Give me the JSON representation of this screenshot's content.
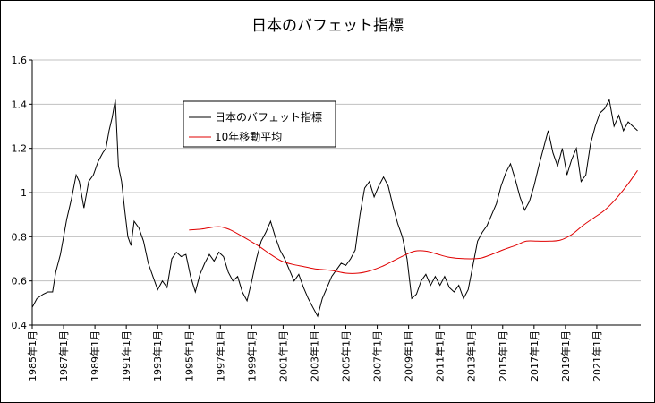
{
  "chart_data": {
    "type": "line",
    "title": "日本のバフェット指標",
    "xlabel": "",
    "ylabel": "",
    "ylim": [
      0.4,
      1.6
    ],
    "yticks": [
      "0.4",
      "0.6",
      "0.8",
      "1",
      "1.2",
      "1.4",
      "1.6"
    ],
    "xlim": [
      1985.0,
      2023.8
    ],
    "xticks": [
      "1985年1月",
      "1987年1月",
      "1989年1月",
      "1991年1月",
      "1993年1月",
      "1995年1月",
      "1997年1月",
      "1999年1月",
      "2001年1月",
      "2003年1月",
      "2005年1月",
      "2007年1月",
      "2009年1月",
      "2011年1月",
      "2013年1月",
      "2015年1月",
      "2017年1月",
      "2019年1月",
      "2021年1月"
    ],
    "grid": true,
    "legend": "inside-top-left",
    "series": [
      {
        "name": "日本のバフェット指標",
        "color": "#000000",
        "x": [
          1985.0,
          1985.3,
          1985.7,
          1986.0,
          1986.3,
          1986.5,
          1986.8,
          1987.0,
          1987.2,
          1987.5,
          1987.8,
          1988.0,
          1988.3,
          1988.6,
          1988.9,
          1989.2,
          1989.5,
          1989.7,
          1989.9,
          1990.1,
          1990.3,
          1990.5,
          1990.7,
          1990.9,
          1991.1,
          1991.3,
          1991.5,
          1991.8,
          1992.1,
          1992.4,
          1992.7,
          1993.0,
          1993.3,
          1993.6,
          1993.9,
          1994.2,
          1994.5,
          1994.8,
          1995.1,
          1995.4,
          1995.7,
          1996.0,
          1996.3,
          1996.6,
          1996.9,
          1997.2,
          1997.5,
          1997.8,
          1998.1,
          1998.4,
          1998.7,
          1999.0,
          1999.3,
          1999.6,
          1999.9,
          2000.2,
          2000.5,
          2000.8,
          2001.1,
          2001.4,
          2001.7,
          2002.0,
          2002.3,
          2002.6,
          2002.9,
          2003.2,
          2003.5,
          2003.8,
          2004.1,
          2004.4,
          2004.7,
          2005.0,
          2005.3,
          2005.6,
          2005.9,
          2006.2,
          2006.5,
          2006.8,
          2007.1,
          2007.4,
          2007.7,
          2008.0,
          2008.3,
          2008.6,
          2008.9,
          2009.2,
          2009.5,
          2009.8,
          2010.1,
          2010.4,
          2010.7,
          2011.0,
          2011.3,
          2011.6,
          2011.9,
          2012.2,
          2012.5,
          2012.8,
          2013.1,
          2013.4,
          2013.7,
          2014.0,
          2014.3,
          2014.6,
          2014.9,
          2015.2,
          2015.5,
          2015.8,
          2016.1,
          2016.4,
          2016.7,
          2017.0,
          2017.3,
          2017.6,
          2017.9,
          2018.2,
          2018.5,
          2018.8,
          2019.1,
          2019.4,
          2019.7,
          2020.0,
          2020.3,
          2020.6,
          2020.9,
          2021.2,
          2021.5,
          2021.8,
          2022.1,
          2022.4,
          2022.7,
          2023.0,
          2023.3,
          2023.6
        ],
        "values": [
          0.48,
          0.52,
          0.54,
          0.55,
          0.55,
          0.64,
          0.72,
          0.8,
          0.88,
          0.97,
          1.08,
          1.05,
          0.93,
          1.05,
          1.08,
          1.14,
          1.18,
          1.2,
          1.28,
          1.34,
          1.42,
          1.12,
          1.05,
          0.92,
          0.8,
          0.76,
          0.87,
          0.84,
          0.78,
          0.68,
          0.62,
          0.56,
          0.6,
          0.57,
          0.7,
          0.73,
          0.71,
          0.72,
          0.62,
          0.55,
          0.63,
          0.68,
          0.72,
          0.69,
          0.73,
          0.71,
          0.64,
          0.6,
          0.62,
          0.55,
          0.51,
          0.6,
          0.7,
          0.78,
          0.82,
          0.87,
          0.8,
          0.74,
          0.7,
          0.65,
          0.6,
          0.63,
          0.57,
          0.52,
          0.48,
          0.44,
          0.52,
          0.57,
          0.62,
          0.65,
          0.68,
          0.67,
          0.7,
          0.74,
          0.9,
          1.02,
          1.05,
          0.98,
          1.03,
          1.07,
          1.03,
          0.94,
          0.86,
          0.8,
          0.7,
          0.52,
          0.54,
          0.6,
          0.63,
          0.58,
          0.62,
          0.58,
          0.62,
          0.57,
          0.55,
          0.58,
          0.52,
          0.56,
          0.67,
          0.78,
          0.82,
          0.85,
          0.9,
          0.95,
          1.03,
          1.09,
          1.13,
          1.06,
          0.98,
          0.92,
          0.96,
          1.03,
          1.12,
          1.2,
          1.28,
          1.18,
          1.12,
          1.2,
          1.08,
          1.15,
          1.2,
          1.05,
          1.08,
          1.22,
          1.3,
          1.36,
          1.38,
          1.42,
          1.3,
          1.35,
          1.28,
          1.32,
          1.3,
          1.28
        ],
        "smooth": false
      },
      {
        "name": "10年移動平均",
        "color": "#e00000",
        "x": [
          1995.0,
          1995.8,
          1996.5,
          1997.0,
          1997.6,
          1998.2,
          1998.8,
          1999.5,
          2000.2,
          2000.9,
          2001.6,
          2002.3,
          2003.0,
          2003.7,
          2004.3,
          2005.0,
          2005.8,
          2006.5,
          2007.3,
          2008.0,
          2008.7,
          2009.4,
          2010.1,
          2010.8,
          2011.5,
          2012.2,
          2012.9,
          2013.6,
          2014.3,
          2015.0,
          2015.8,
          2016.5,
          2017.2,
          2018.0,
          2018.7,
          2019.4,
          2020.1,
          2020.8,
          2021.5,
          2022.2,
          2022.9,
          2023.6
        ],
        "values": [
          0.83,
          0.835,
          0.843,
          0.845,
          0.832,
          0.81,
          0.785,
          0.755,
          0.72,
          0.69,
          0.675,
          0.665,
          0.655,
          0.65,
          0.645,
          0.635,
          0.635,
          0.645,
          0.665,
          0.69,
          0.715,
          0.735,
          0.735,
          0.722,
          0.708,
          0.702,
          0.7,
          0.703,
          0.72,
          0.74,
          0.76,
          0.78,
          0.78,
          0.78,
          0.785,
          0.81,
          0.85,
          0.885,
          0.92,
          0.97,
          1.03,
          1.1
        ],
        "smooth": true
      }
    ]
  }
}
